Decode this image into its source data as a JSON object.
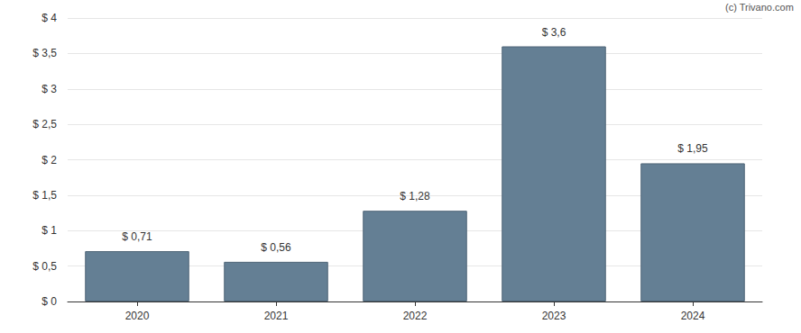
{
  "chart_data": {
    "type": "bar",
    "annotations": [
      "(c) Trivano.com"
    ],
    "categories": [
      "2020",
      "2021",
      "2022",
      "2023",
      "2024"
    ],
    "values": [
      0.71,
      0.56,
      1.28,
      3.6,
      1.95
    ],
    "value_labels": [
      "$ 0,71",
      "$ 0,56",
      "$ 1,28",
      "$ 3,6",
      "$ 1,95"
    ],
    "data_labels": true,
    "color": "#647f94",
    "ylim": [
      0,
      4
    ],
    "yticks": [
      {
        "value": 0,
        "label": "$ 0"
      },
      {
        "value": 0.5,
        "label": "$ 0,5"
      },
      {
        "value": 1,
        "label": "$ 1"
      },
      {
        "value": 1.5,
        "label": "$ 1,5"
      },
      {
        "value": 2,
        "label": "$ 2"
      },
      {
        "value": 2.5,
        "label": "$ 2,5"
      },
      {
        "value": 3,
        "label": "$ 3"
      },
      {
        "value": 3.5,
        "label": "$ 3,5"
      },
      {
        "value": 4,
        "label": "$ 4"
      }
    ],
    "grid": true
  }
}
